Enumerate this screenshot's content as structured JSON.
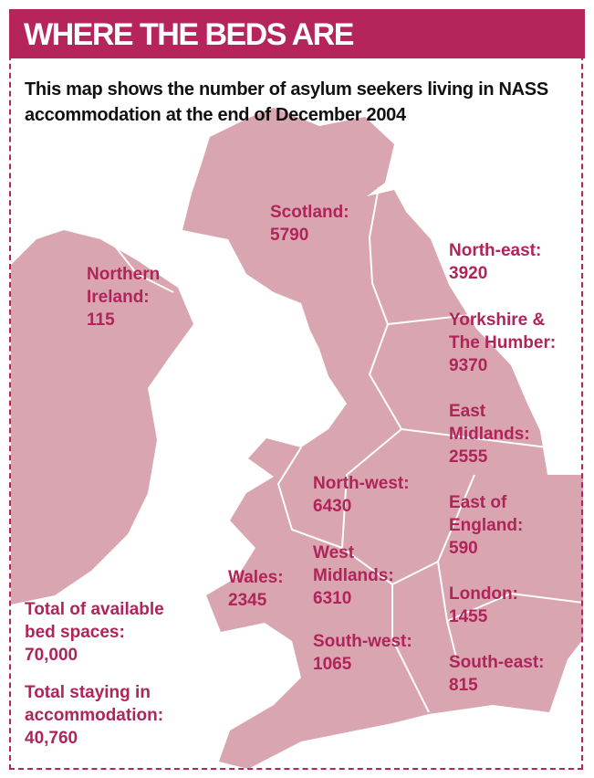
{
  "header": {
    "title": "WHERE THE BEDS ARE",
    "subtitle": "This map shows the number of asylum seekers living in NASS accommodation at the end of December 2004"
  },
  "regions": [
    {
      "name": "Scotland:",
      "value": 5790
    },
    {
      "name": "Northern Ireland:",
      "value": 115
    },
    {
      "name": "North-east:",
      "value": 3920
    },
    {
      "name": "Yorkshire & The Humber:",
      "value": 9370
    },
    {
      "name": "East Midlands:",
      "value": 2555
    },
    {
      "name": "North-west:",
      "value": 6430
    },
    {
      "name": "East of England:",
      "value": 590
    },
    {
      "name": "Wales:",
      "value": 2345
    },
    {
      "name": "West Midlands:",
      "value": 6310
    },
    {
      "name": "London:",
      "value": 1455
    },
    {
      "name": "South-west:",
      "value": 1065
    },
    {
      "name": "South-east:",
      "value": 815
    }
  ],
  "totals": [
    {
      "label": "Total of available bed spaces:",
      "value": "70,000"
    },
    {
      "label": "Total staying in accommodation:",
      "value": "40,760"
    }
  ]
}
